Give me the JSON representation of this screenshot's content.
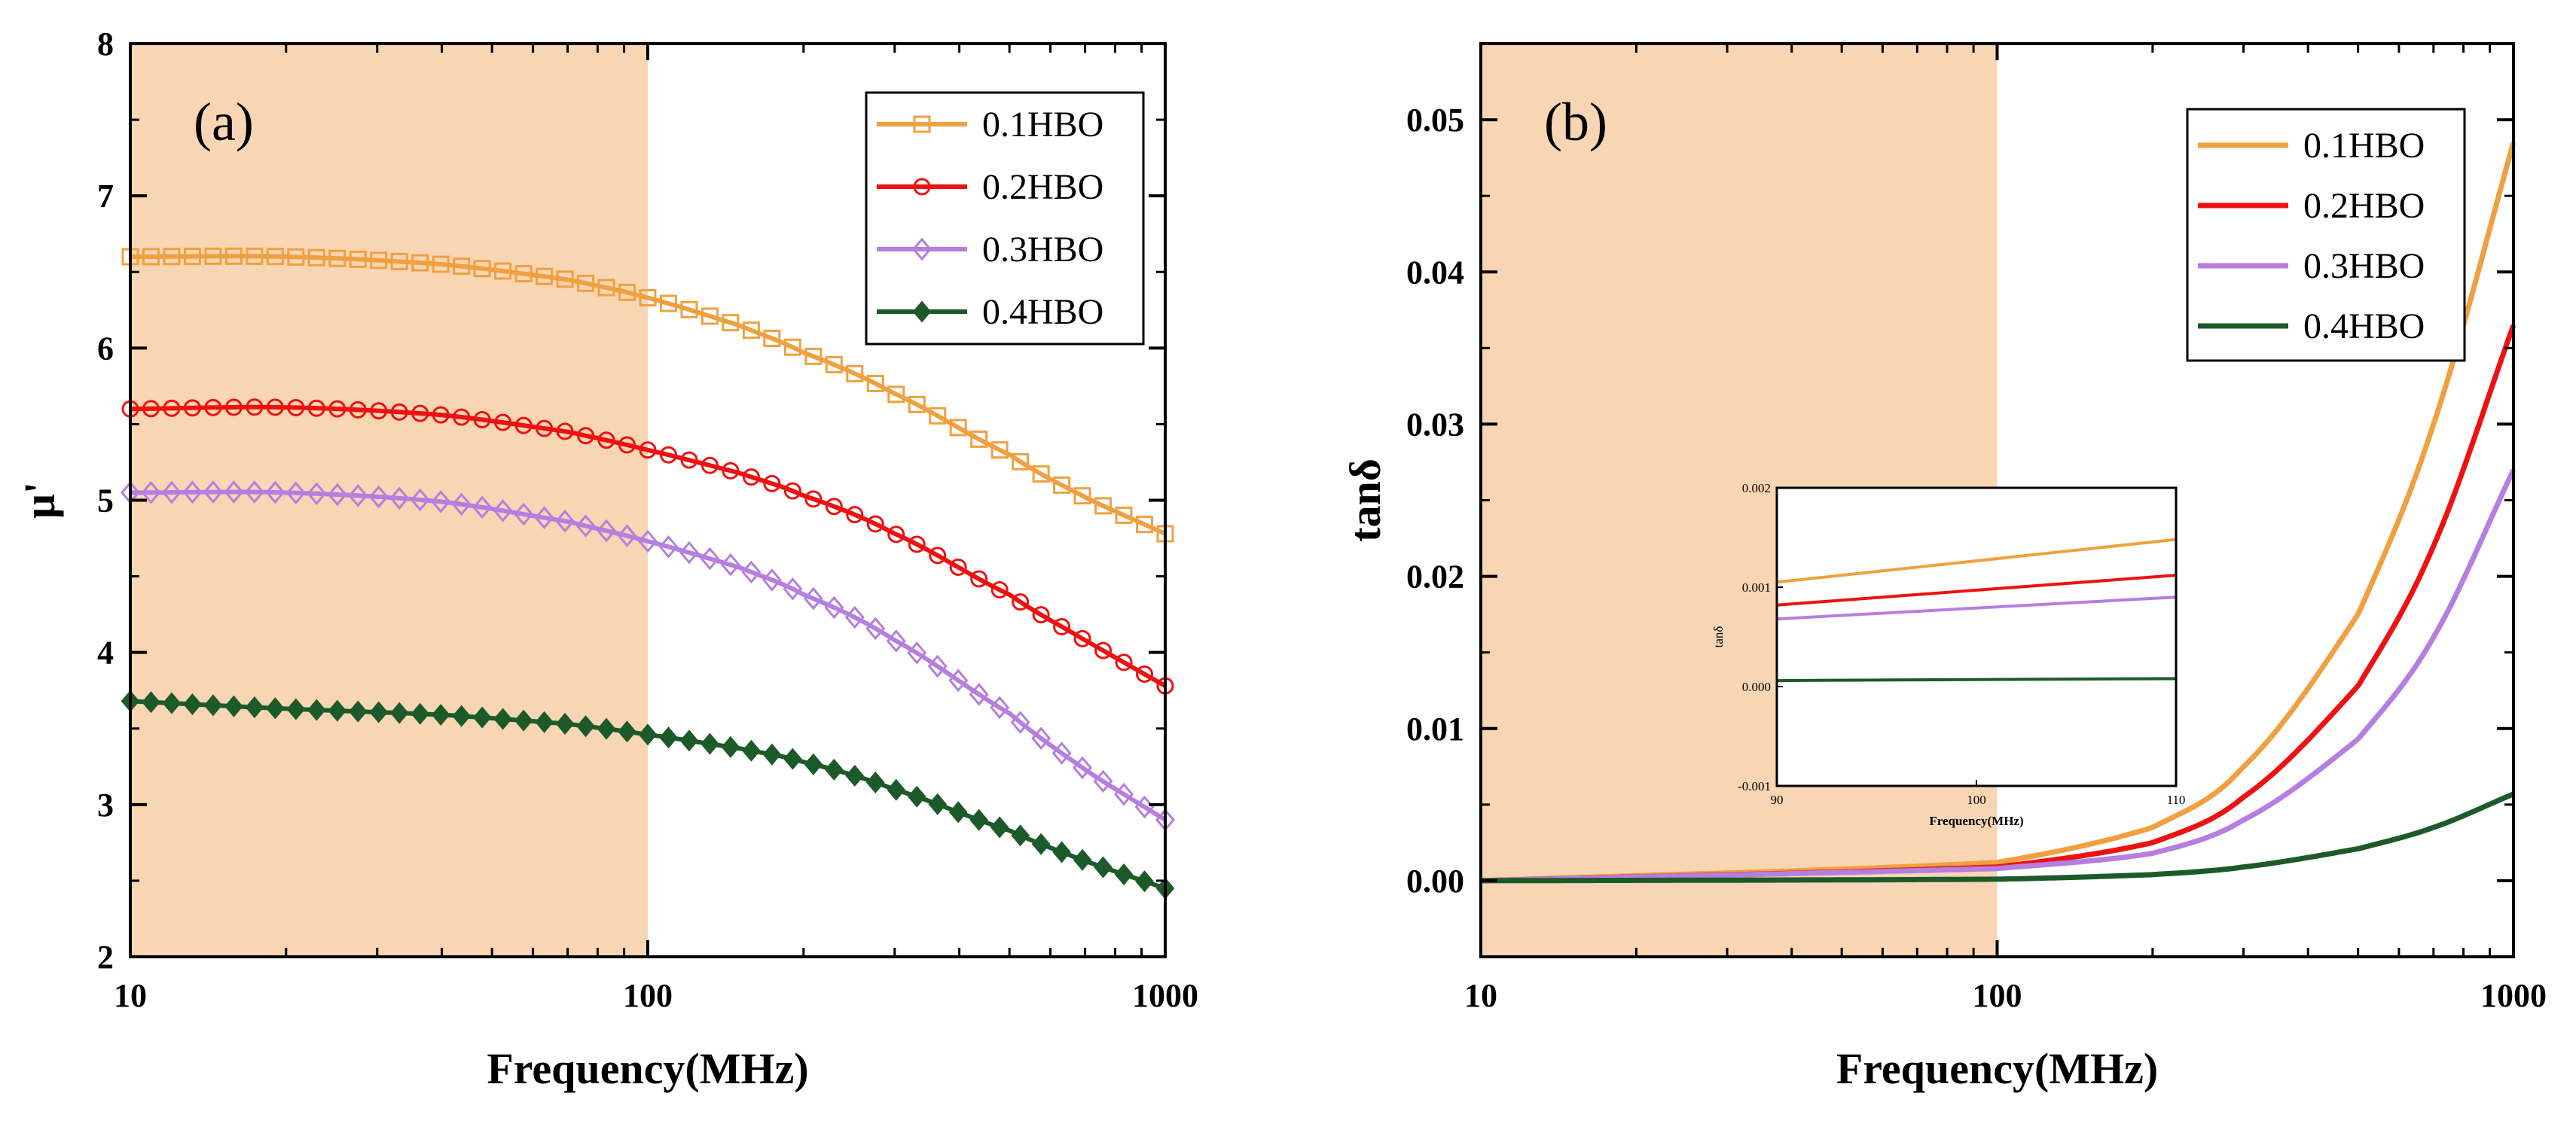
{
  "colors": {
    "0.1HBO": "#f0a040",
    "0.2HBO": "#ee1111",
    "0.3HBO": "#b57ee0",
    "0.4HBO": "#1d5a2a",
    "shade": "#f8d5b3"
  },
  "chart_data": [
    {
      "id": "a",
      "type": "line",
      "panel_label": "(a)",
      "xlabel": "Frequency(MHz)",
      "ylabel": "μ'",
      "xscale": "log",
      "xlim": [
        10,
        1000
      ],
      "ylim": [
        2,
        8
      ],
      "x_ticks": [
        10,
        100,
        1000
      ],
      "x_tick_labels": [
        "10",
        "100",
        "1000"
      ],
      "y_ticks": [
        2,
        3,
        4,
        5,
        6,
        7,
        8
      ],
      "y_tick_labels": [
        "2",
        "3",
        "4",
        "5",
        "6",
        "7",
        "8"
      ],
      "shaded_region": [
        10,
        100
      ],
      "legend_position": "top-right",
      "series": [
        {
          "name": "0.1HBO",
          "marker": "square",
          "x": [
            10,
            20,
            40,
            70,
            100,
            150,
            200,
            300,
            500,
            700,
            1000
          ],
          "y": [
            6.6,
            6.6,
            6.55,
            6.45,
            6.33,
            6.15,
            5.97,
            5.7,
            5.3,
            5.02,
            4.78
          ]
        },
        {
          "name": "0.2HBO",
          "marker": "circle",
          "x": [
            10,
            20,
            40,
            70,
            100,
            150,
            200,
            300,
            500,
            700,
            1000
          ],
          "y": [
            5.6,
            5.61,
            5.56,
            5.45,
            5.33,
            5.18,
            5.03,
            4.78,
            4.38,
            4.08,
            3.78
          ]
        },
        {
          "name": "0.3HBO",
          "marker": "diamond",
          "x": [
            10,
            20,
            40,
            70,
            100,
            150,
            200,
            300,
            500,
            700,
            1000
          ],
          "y": [
            5.05,
            5.05,
            4.99,
            4.86,
            4.73,
            4.56,
            4.38,
            4.08,
            3.6,
            3.23,
            2.9
          ]
        },
        {
          "name": "0.4HBO",
          "marker": "filled-diamond",
          "x": [
            10,
            20,
            40,
            70,
            100,
            150,
            200,
            300,
            500,
            700,
            1000
          ],
          "y": [
            3.68,
            3.63,
            3.59,
            3.53,
            3.46,
            3.37,
            3.28,
            3.1,
            2.83,
            2.63,
            2.45
          ]
        }
      ]
    },
    {
      "id": "b",
      "type": "line",
      "panel_label": "(b)",
      "xlabel": "Frequency(MHz)",
      "ylabel": "tanδ",
      "xscale": "log",
      "xlim": [
        10,
        1000
      ],
      "ylim": [
        -0.005,
        0.055
      ],
      "x_ticks": [
        10,
        100,
        1000
      ],
      "x_tick_labels": [
        "10",
        "100",
        "1000"
      ],
      "y_ticks": [
        0.0,
        0.01,
        0.02,
        0.03,
        0.04,
        0.05
      ],
      "y_tick_labels": [
        "0.00",
        "0.01",
        "0.02",
        "0.03",
        "0.04",
        "0.05"
      ],
      "shaded_region": [
        10,
        100
      ],
      "legend_position": "top-right",
      "series": [
        {
          "name": "0.1HBO",
          "x": [
            10,
            100,
            200,
            300,
            500,
            700,
            1000
          ],
          "y": [
            0.0,
            0.0012,
            0.0035,
            0.0075,
            0.0175,
            0.03,
            0.0485
          ]
        },
        {
          "name": "0.2HBO",
          "x": [
            10,
            100,
            200,
            300,
            500,
            700,
            1000
          ],
          "y": [
            0.0,
            0.0009,
            0.0025,
            0.0055,
            0.0128,
            0.022,
            0.0365
          ]
        },
        {
          "name": "0.3HBO",
          "x": [
            10,
            100,
            200,
            300,
            500,
            700,
            1000
          ],
          "y": [
            0.0,
            0.0008,
            0.0018,
            0.004,
            0.0093,
            0.016,
            0.027
          ]
        },
        {
          "name": "0.4HBO",
          "x": [
            10,
            100,
            200,
            300,
            500,
            700,
            1000
          ],
          "y": [
            0.0,
            0.0001,
            0.0004,
            0.0009,
            0.0021,
            0.0035,
            0.0057
          ]
        }
      ],
      "inset": {
        "xlabel": "Frequency(MHz)",
        "ylabel": "tanδ",
        "xlim": [
          90,
          110
        ],
        "ylim": [
          -0.001,
          0.002
        ],
        "x_ticks": [
          90,
          100,
          110
        ],
        "x_tick_labels": [
          "90",
          "100",
          "110"
        ],
        "y_ticks": [
          -0.001,
          0.0,
          0.001,
          0.002
        ],
        "y_tick_labels": [
          "-0.001",
          "0.000",
          "0.001",
          "0.002"
        ],
        "series": [
          {
            "name": "0.1HBO",
            "x": [
              90,
              110
            ],
            "y": [
              0.00105,
              0.00148
            ]
          },
          {
            "name": "0.2HBO",
            "x": [
              90,
              110
            ],
            "y": [
              0.00082,
              0.00112
            ]
          },
          {
            "name": "0.3HBO",
            "x": [
              90,
              110
            ],
            "y": [
              0.00068,
              0.0009
            ]
          },
          {
            "name": "0.4HBO",
            "x": [
              90,
              110
            ],
            "y": [
              6e-05,
              8e-05
            ]
          }
        ]
      }
    }
  ]
}
